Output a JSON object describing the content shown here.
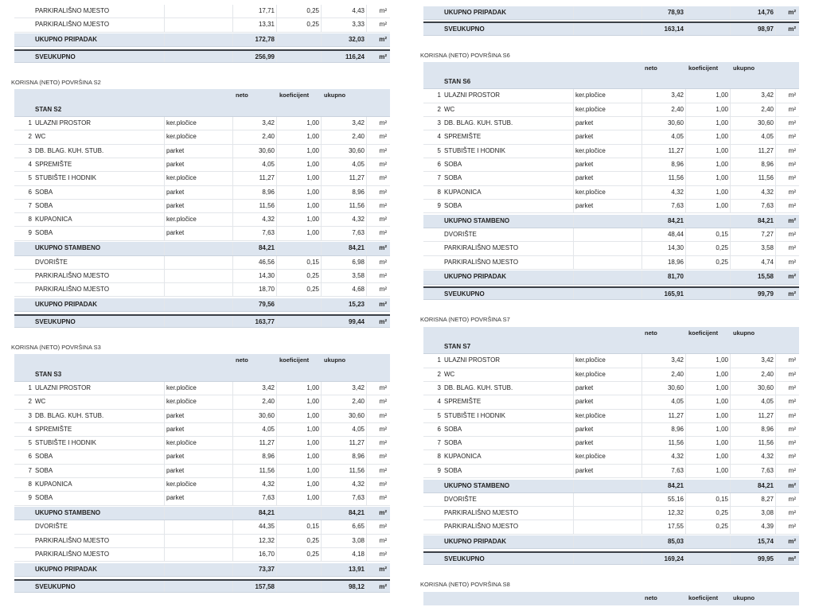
{
  "columns": [
    {
      "blocks": [
        {
          "rows": [
            {
              "kind": "sub",
              "name": "PARKIRALIŠNO MJESTO",
              "neto": "17,71",
              "koef": "0,25",
              "ukupno": "4,43",
              "unit": "m²"
            },
            {
              "kind": "sub",
              "name": "PARKIRALIŠNO MJESTO",
              "neto": "13,31",
              "koef": "0,25",
              "ukupno": "3,33",
              "unit": "m²"
            },
            {
              "kind": "total",
              "name": "UKUPNO PRIPADAK",
              "neto": "172,78",
              "ukupno": "32,03",
              "unit": "m²"
            },
            {
              "kind": "grand",
              "name": "SVEUKUPNO",
              "neto": "256,99",
              "ukupno": "116,24",
              "unit": "m²"
            }
          ]
        },
        {
          "title": "KORISNA (NETO) POVRŠINA S2",
          "header": {
            "neto": "neto",
            "koef": "koeficijent",
            "ukupno": "ukupno"
          },
          "unit_name": "STAN S2",
          "rows": [
            {
              "kind": "room",
              "num": "1",
              "name": "ULAZNI PROSTOR",
              "material": "ker.pločice",
              "neto": "3,42",
              "koef": "1,00",
              "ukupno": "3,42",
              "unit": "m²"
            },
            {
              "kind": "room",
              "num": "2",
              "name": "WC",
              "material": "ker.pločice",
              "neto": "2,40",
              "koef": "1,00",
              "ukupno": "2,40",
              "unit": "m²"
            },
            {
              "kind": "room",
              "num": "3",
              "name": "DB. BLAG. KUH. STUB.",
              "material": "parket",
              "neto": "30,60",
              "koef": "1,00",
              "ukupno": "30,60",
              "unit": "m²"
            },
            {
              "kind": "room",
              "num": "4",
              "name": "SPREMIŠTE",
              "material": "parket",
              "neto": "4,05",
              "koef": "1,00",
              "ukupno": "4,05",
              "unit": "m²"
            },
            {
              "kind": "room",
              "num": "5",
              "name": "STUBIŠTE I HODNIK",
              "material": "ker.pločice",
              "neto": "11,27",
              "koef": "1,00",
              "ukupno": "11,27",
              "unit": "m²"
            },
            {
              "kind": "room",
              "num": "6",
              "name": "SOBA",
              "material": "parket",
              "neto": "8,96",
              "koef": "1,00",
              "ukupno": "8,96",
              "unit": "m²"
            },
            {
              "kind": "room",
              "num": "7",
              "name": "SOBA",
              "material": "parket",
              "neto": "11,56",
              "koef": "1,00",
              "ukupno": "11,56",
              "unit": "m²"
            },
            {
              "kind": "room",
              "num": "8",
              "name": "KUPAONICA",
              "material": "ker.pločice",
              "neto": "4,32",
              "koef": "1,00",
              "ukupno": "4,32",
              "unit": "m²"
            },
            {
              "kind": "room",
              "num": "9",
              "name": "SOBA",
              "material": "parket",
              "neto": "7,63",
              "koef": "1,00",
              "ukupno": "7,63",
              "unit": "m²"
            },
            {
              "kind": "total",
              "name": "UKUPNO STAMBENO",
              "neto": "84,21",
              "ukupno": "84,21",
              "unit": "m²"
            },
            {
              "kind": "sub",
              "name": "DVORIŠTE",
              "neto": "46,56",
              "koef": "0,15",
              "ukupno": "6,98",
              "unit": "m²"
            },
            {
              "kind": "sub",
              "name": "PARKIRALIŠNO MJESTO",
              "neto": "14,30",
              "koef": "0,25",
              "ukupno": "3,58",
              "unit": "m²"
            },
            {
              "kind": "sub",
              "name": "PARKIRALIŠNO MJESTO",
              "neto": "18,70",
              "koef": "0,25",
              "ukupno": "4,68",
              "unit": "m²"
            },
            {
              "kind": "total",
              "name": "UKUPNO PRIPADAK",
              "neto": "79,56",
              "ukupno": "15,23",
              "unit": "m²"
            },
            {
              "kind": "grand",
              "name": "SVEUKUPNO",
              "neto": "163,77",
              "ukupno": "99,44",
              "unit": "m²"
            }
          ]
        },
        {
          "title": "KORISNA (NETO) POVRŠINA S3",
          "header": {
            "neto": "neto",
            "koef": "koeficijent",
            "ukupno": "ukupno"
          },
          "unit_name": "STAN S3",
          "rows": [
            {
              "kind": "room",
              "num": "1",
              "name": "ULAZNI PROSTOR",
              "material": "ker.pločice",
              "neto": "3,42",
              "koef": "1,00",
              "ukupno": "3,42",
              "unit": "m²"
            },
            {
              "kind": "room",
              "num": "2",
              "name": "WC",
              "material": "ker.pločice",
              "neto": "2,40",
              "koef": "1,00",
              "ukupno": "2,40",
              "unit": "m²"
            },
            {
              "kind": "room",
              "num": "3",
              "name": "DB. BLAG. KUH. STUB.",
              "material": "parket",
              "neto": "30,60",
              "koef": "1,00",
              "ukupno": "30,60",
              "unit": "m²"
            },
            {
              "kind": "room",
              "num": "4",
              "name": "SPREMIŠTE",
              "material": "parket",
              "neto": "4,05",
              "koef": "1,00",
              "ukupno": "4,05",
              "unit": "m²"
            },
            {
              "kind": "room",
              "num": "5",
              "name": "STUBIŠTE I HODNIK",
              "material": "ker.pločice",
              "neto": "11,27",
              "koef": "1,00",
              "ukupno": "11,27",
              "unit": "m²"
            },
            {
              "kind": "room",
              "num": "6",
              "name": "SOBA",
              "material": "parket",
              "neto": "8,96",
              "koef": "1,00",
              "ukupno": "8,96",
              "unit": "m²"
            },
            {
              "kind": "room",
              "num": "7",
              "name": "SOBA",
              "material": "parket",
              "neto": "11,56",
              "koef": "1,00",
              "ukupno": "11,56",
              "unit": "m²"
            },
            {
              "kind": "room",
              "num": "8",
              "name": "KUPAONICA",
              "material": "ker.pločice",
              "neto": "4,32",
              "koef": "1,00",
              "ukupno": "4,32",
              "unit": "m²"
            },
            {
              "kind": "room",
              "num": "9",
              "name": "SOBA",
              "material": "parket",
              "neto": "7,63",
              "koef": "1,00",
              "ukupno": "7,63",
              "unit": "m²"
            },
            {
              "kind": "total",
              "name": "UKUPNO STAMBENO",
              "neto": "84,21",
              "ukupno": "84,21",
              "unit": "m²"
            },
            {
              "kind": "sub",
              "name": "DVORIŠTE",
              "neto": "44,35",
              "koef": "0,15",
              "ukupno": "6,65",
              "unit": "m²"
            },
            {
              "kind": "sub",
              "name": "PARKIRALIŠNO MJESTO",
              "neto": "12,32",
              "koef": "0,25",
              "ukupno": "3,08",
              "unit": "m²"
            },
            {
              "kind": "sub",
              "name": "PARKIRALIŠNO MJESTO",
              "neto": "16,70",
              "koef": "0,25",
              "ukupno": "4,18",
              "unit": "m²"
            },
            {
              "kind": "total",
              "name": "UKUPNO PRIPADAK",
              "neto": "73,37",
              "ukupno": "13,91",
              "unit": "m²"
            },
            {
              "kind": "grand",
              "name": "SVEUKUPNO",
              "neto": "157,58",
              "ukupno": "98,12",
              "unit": "m²"
            }
          ]
        }
      ]
    },
    {
      "blocks": [
        {
          "rows": [
            {
              "kind": "total",
              "name": "UKUPNO PRIPADAK",
              "neto": "78,93",
              "ukupno": "14,76",
              "unit": "m²"
            },
            {
              "kind": "grand",
              "name": "SVEUKUPNO",
              "neto": "163,14",
              "ukupno": "98,97",
              "unit": "m²"
            }
          ]
        },
        {
          "title": "KORISNA (NETO) POVRŠINA S6",
          "header": {
            "neto": "neto",
            "koef": "koeficijent",
            "ukupno": "ukupno"
          },
          "unit_name": "STAN S6",
          "rows": [
            {
              "kind": "room",
              "num": "1",
              "name": "ULAZNI PROSTOR",
              "material": "ker.pločice",
              "neto": "3,42",
              "koef": "1,00",
              "ukupno": "3,42",
              "unit": "m²"
            },
            {
              "kind": "room",
              "num": "2",
              "name": "WC",
              "material": "ker.pločice",
              "neto": "2,40",
              "koef": "1,00",
              "ukupno": "2,40",
              "unit": "m²"
            },
            {
              "kind": "room",
              "num": "3",
              "name": "DB. BLAG. KUH. STUB.",
              "material": "parket",
              "neto": "30,60",
              "koef": "1,00",
              "ukupno": "30,60",
              "unit": "m²"
            },
            {
              "kind": "room",
              "num": "4",
              "name": "SPREMIŠTE",
              "material": "parket",
              "neto": "4,05",
              "koef": "1,00",
              "ukupno": "4,05",
              "unit": "m²"
            },
            {
              "kind": "room",
              "num": "5",
              "name": "STUBIŠTE I HODNIK",
              "material": "ker.pločice",
              "neto": "11,27",
              "koef": "1,00",
              "ukupno": "11,27",
              "unit": "m²"
            },
            {
              "kind": "room",
              "num": "6",
              "name": "SOBA",
              "material": "parket",
              "neto": "8,96",
              "koef": "1,00",
              "ukupno": "8,96",
              "unit": "m²"
            },
            {
              "kind": "room",
              "num": "7",
              "name": "SOBA",
              "material": "parket",
              "neto": "11,56",
              "koef": "1,00",
              "ukupno": "11,56",
              "unit": "m²"
            },
            {
              "kind": "room",
              "num": "8",
              "name": "KUPAONICA",
              "material": "ker.pločice",
              "neto": "4,32",
              "koef": "1,00",
              "ukupno": "4,32",
              "unit": "m²"
            },
            {
              "kind": "room",
              "num": "9",
              "name": "SOBA",
              "material": "parket",
              "neto": "7,63",
              "koef": "1,00",
              "ukupno": "7,63",
              "unit": "m²"
            },
            {
              "kind": "total",
              "name": "UKUPNO STAMBENO",
              "neto": "84,21",
              "ukupno": "84,21",
              "unit": "m²"
            },
            {
              "kind": "sub",
              "name": "DVORIŠTE",
              "neto": "48,44",
              "koef": "0,15",
              "ukupno": "7,27",
              "unit": "m²"
            },
            {
              "kind": "sub",
              "name": "PARKIRALIŠNO MJESTO",
              "neto": "14,30",
              "koef": "0,25",
              "ukupno": "3,58",
              "unit": "m²"
            },
            {
              "kind": "sub",
              "name": "PARKIRALIŠNO MJESTO",
              "neto": "18,96",
              "koef": "0,25",
              "ukupno": "4,74",
              "unit": "m²"
            },
            {
              "kind": "total",
              "name": "UKUPNO PRIPADAK",
              "neto": "81,70",
              "ukupno": "15,58",
              "unit": "m²"
            },
            {
              "kind": "grand",
              "name": "SVEUKUPNO",
              "neto": "165,91",
              "ukupno": "99,79",
              "unit": "m²"
            }
          ]
        },
        {
          "title": "KORISNA (NETO) POVRŠINA S7",
          "header": {
            "neto": "neto",
            "koef": "koeficijent",
            "ukupno": "ukupno"
          },
          "unit_name": "STAN S7",
          "rows": [
            {
              "kind": "room",
              "num": "1",
              "name": "ULAZNI PROSTOR",
              "material": "ker.pločice",
              "neto": "3,42",
              "koef": "1,00",
              "ukupno": "3,42",
              "unit": "m²"
            },
            {
              "kind": "room",
              "num": "2",
              "name": "WC",
              "material": "ker.pločice",
              "neto": "2,40",
              "koef": "1,00",
              "ukupno": "2,40",
              "unit": "m²"
            },
            {
              "kind": "room",
              "num": "3",
              "name": "DB. BLAG. KUH. STUB.",
              "material": "parket",
              "neto": "30,60",
              "koef": "1,00",
              "ukupno": "30,60",
              "unit": "m²"
            },
            {
              "kind": "room",
              "num": "4",
              "name": "SPREMIŠTE",
              "material": "parket",
              "neto": "4,05",
              "koef": "1,00",
              "ukupno": "4,05",
              "unit": "m²"
            },
            {
              "kind": "room",
              "num": "5",
              "name": "STUBIŠTE I HODNIK",
              "material": "ker.pločice",
              "neto": "11,27",
              "koef": "1,00",
              "ukupno": "11,27",
              "unit": "m²"
            },
            {
              "kind": "room",
              "num": "6",
              "name": "SOBA",
              "material": "parket",
              "neto": "8,96",
              "koef": "1,00",
              "ukupno": "8,96",
              "unit": "m²"
            },
            {
              "kind": "room",
              "num": "7",
              "name": "SOBA",
              "material": "parket",
              "neto": "11,56",
              "koef": "1,00",
              "ukupno": "11,56",
              "unit": "m²"
            },
            {
              "kind": "room",
              "num": "8",
              "name": "KUPAONICA",
              "material": "ker.pločice",
              "neto": "4,32",
              "koef": "1,00",
              "ukupno": "4,32",
              "unit": "m²"
            },
            {
              "kind": "room",
              "num": "9",
              "name": "SOBA",
              "material": "parket",
              "neto": "7,63",
              "koef": "1,00",
              "ukupno": "7,63",
              "unit": "m²"
            },
            {
              "kind": "total",
              "name": "UKUPNO STAMBENO",
              "neto": "84,21",
              "ukupno": "84,21",
              "unit": "m²"
            },
            {
              "kind": "sub",
              "name": "DVORIŠTE",
              "neto": "55,16",
              "koef": "0,15",
              "ukupno": "8,27",
              "unit": "m²"
            },
            {
              "kind": "sub",
              "name": "PARKIRALIŠNO MJESTO",
              "neto": "12,32",
              "koef": "0,25",
              "ukupno": "3,08",
              "unit": "m²"
            },
            {
              "kind": "sub",
              "name": "PARKIRALIŠNO MJESTO",
              "neto": "17,55",
              "koef": "0,25",
              "ukupno": "4,39",
              "unit": "m²"
            },
            {
              "kind": "total",
              "name": "UKUPNO PRIPADAK",
              "neto": "85,03",
              "ukupno": "15,74",
              "unit": "m²"
            },
            {
              "kind": "grand",
              "name": "SVEUKUPNO",
              "neto": "169,24",
              "ukupno": "99,95",
              "unit": "m²"
            }
          ]
        },
        {
          "title": "KORISNA (NETO) POVRŠINA S8",
          "header": {
            "neto": "neto",
            "koef": "koeficijent",
            "ukupno": "ukupno"
          },
          "rows": []
        }
      ]
    }
  ]
}
